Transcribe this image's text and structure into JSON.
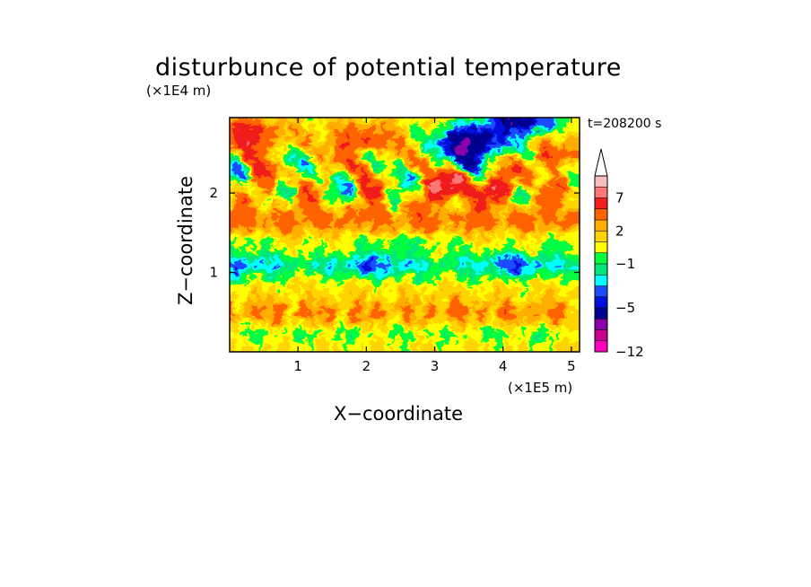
{
  "chart_data": {
    "type": "heatmap",
    "title": "disturbunce of potential temperature",
    "xlabel": "X−coordinate",
    "ylabel": "Z−coordinate",
    "x_multiplier": "(×1E5 m)",
    "y_multiplier": "(×1E4 m)",
    "time_label": "t=208200 s",
    "x_ticks": [
      "1",
      "2",
      "3",
      "4",
      "5"
    ],
    "y_ticks": [
      "1",
      "2"
    ],
    "xlim": [
      0,
      5.12
    ],
    "ylim": [
      0,
      2.95
    ],
    "colorbar": {
      "levels": [
        -12,
        -11,
        -9,
        -7,
        -5,
        -4,
        -3,
        -2,
        -1,
        0,
        1,
        2,
        3,
        5,
        7,
        9,
        11
      ],
      "colors": [
        "#ff00bb",
        "#c4008c",
        "#8a00aa",
        "#000090",
        "#0010dd",
        "#1c4cff",
        "#00ffff",
        "#00e67a",
        "#00ff40",
        "#ffff00",
        "#ffd400",
        "#ffae00",
        "#ff6400",
        "#f01e1e",
        "#ff7878",
        "#f7bfbf"
      ],
      "labels": [
        "−12",
        "−5",
        "−1",
        "2",
        "7"
      ],
      "extend": "max"
    },
    "features": [
      {
        "x": 0.4,
        "z": 2.65,
        "value": 7
      },
      {
        "x": 2.05,
        "z": 2.6,
        "value": 7
      },
      {
        "x": 3.6,
        "z": 2.0,
        "value": 7
      },
      {
        "x": 4.75,
        "z": 2.35,
        "value": 7
      },
      {
        "x": 3.65,
        "z": 2.55,
        "value": -5
      },
      {
        "x": 4.4,
        "z": 2.85,
        "value": -5
      },
      {
        "x": 1.6,
        "z": 1.05,
        "value": -3
      },
      {
        "x": 3.9,
        "z": 1.2,
        "value": -3
      },
      {
        "x": 2.7,
        "z": 0.4,
        "value": 1
      }
    ]
  }
}
